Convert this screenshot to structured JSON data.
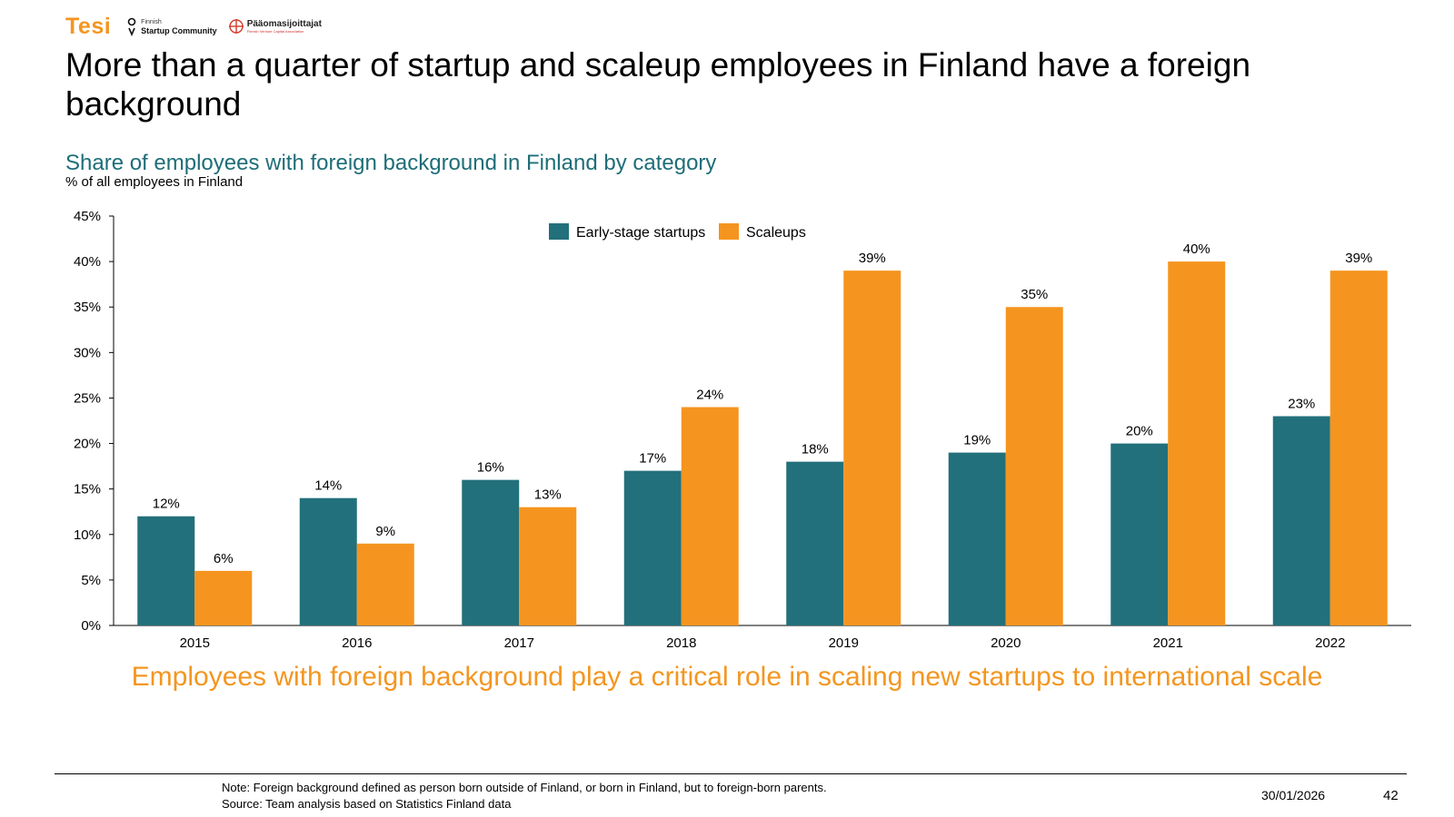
{
  "logos": {
    "tesi": "Tesi",
    "fsc_small": "Finnish",
    "fsc_main": "Startup Community",
    "pv_main": "Pääomasijoittajat",
    "pv_small": "Finnish Venture Capital Association"
  },
  "title": "More than a quarter of startup and scaleup employees in Finland have a foreign background",
  "subtitle": "Share of employees with foreign background in Finland by category",
  "unit_label": "% of all employees in Finland",
  "conclusion": "Employees with foreign background play a critical role in scaling new startups to international scale",
  "footer": {
    "note": "Note: Foreign background defined as person born outside of Finland, or born in Finland, but to foreign-born parents.",
    "source": "Source: Team analysis based on Statistics Finland data",
    "date": "30/01/2026",
    "page": "42"
  },
  "colors": {
    "early": "#22707b",
    "scale": "#f5951f",
    "subtitle": "#1e6e78",
    "accent": "#f39620"
  },
  "chart_data": {
    "type": "bar",
    "title": "Share of employees with foreign background in Finland by category",
    "ylabel": "% of all employees in Finland",
    "xlabel": "",
    "categories": [
      "2015",
      "2016",
      "2017",
      "2018",
      "2019",
      "2020",
      "2021",
      "2022"
    ],
    "series": [
      {
        "name": "Early-stage startups",
        "values": [
          12,
          14,
          16,
          17,
          18,
          19,
          20,
          23
        ]
      },
      {
        "name": "Scaleups",
        "values": [
          6,
          9,
          13,
          24,
          39,
          35,
          40,
          39
        ]
      }
    ],
    "ylim": [
      0,
      45
    ],
    "yticks": [
      0,
      5,
      10,
      15,
      20,
      25,
      30,
      35,
      40,
      45
    ],
    "value_suffix": "%",
    "legend_position": "top-center",
    "grid": false
  }
}
